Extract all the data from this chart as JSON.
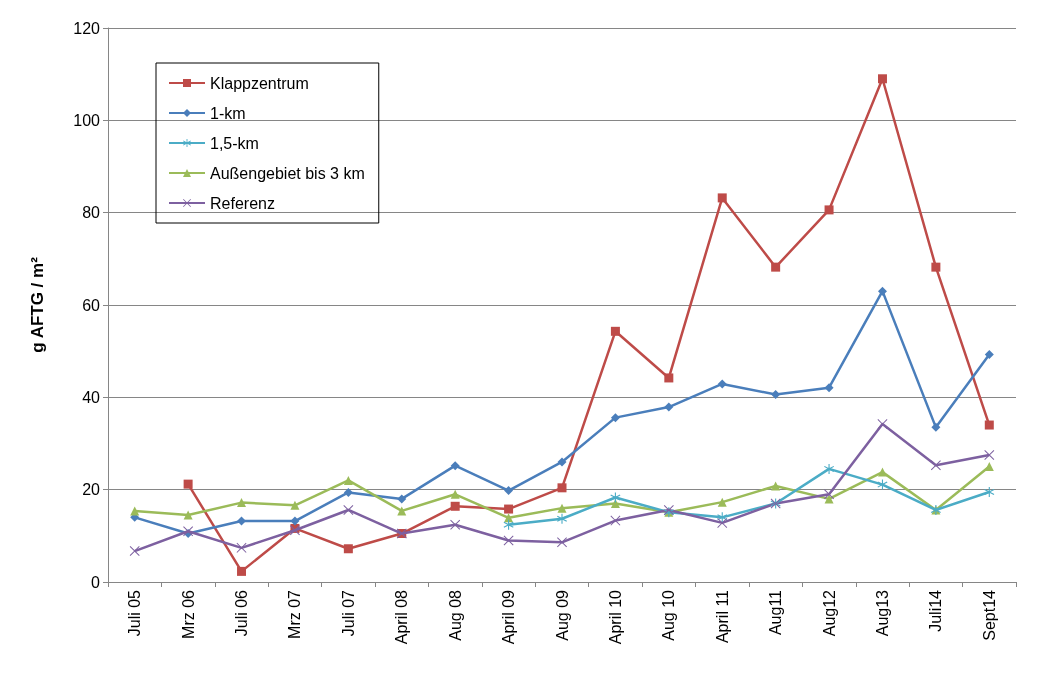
{
  "chart_data": {
    "type": "line",
    "ylabel": "g AFTG / m²",
    "categories": [
      "Juli 05",
      "Mrz 06",
      "Juli 06",
      "Mrz 07",
      "Juli 07",
      "April 08",
      "Aug 08",
      "April 09",
      "Aug 09",
      "April 10",
      "Aug 10",
      "April 11",
      "Aug11",
      "Aug12",
      "Aug13",
      "Juli14",
      "Sept14"
    ],
    "series": [
      {
        "name": "Klappzentrum",
        "color": "#be4b48",
        "marker": "square",
        "values": [
          null,
          21.2,
          2.3,
          11.6,
          7.2,
          10.5,
          16.4,
          15.8,
          20.4,
          54.3,
          44.2,
          83.2,
          68.2,
          80.6,
          109,
          68.2,
          34
        ]
      },
      {
        "name": "1-km",
        "color": "#4a7ebb",
        "marker": "diamond",
        "values": [
          14,
          10.5,
          13.2,
          13.2,
          19.4,
          18,
          25.2,
          19.8,
          26,
          35.6,
          37.9,
          42.9,
          40.6,
          42.1,
          63,
          33.5,
          49.3
        ]
      },
      {
        "name": "1,5-km",
        "color": "#4bacc6",
        "marker": "star",
        "values": [
          null,
          null,
          null,
          null,
          null,
          null,
          null,
          12.4,
          13.7,
          18.3,
          15.1,
          14,
          17,
          24.5,
          21.1,
          15.6,
          19.5
        ]
      },
      {
        "name": "Außengebiet bis 3 km",
        "color": "#9bbb59",
        "marker": "triangle",
        "values": [
          15.4,
          14.5,
          17.2,
          16.6,
          22,
          15.4,
          19,
          13.9,
          16,
          17,
          15.1,
          17.3,
          20.8,
          18,
          23.8,
          15.6,
          25
        ]
      },
      {
        "name": "Referenz",
        "color": "#7d60a0",
        "marker": "cross",
        "values": [
          6.7,
          11,
          7.4,
          11.2,
          15.6,
          10.5,
          12.4,
          9,
          8.6,
          13.3,
          15.6,
          12.8,
          17,
          19,
          34.2,
          25.3,
          27.5
        ]
      }
    ],
    "ylim": [
      0,
      120
    ],
    "yticks": [
      0,
      20,
      40,
      60,
      80,
      100,
      120
    ],
    "grid": "y",
    "legend": "top left",
    "line_style": "solid"
  }
}
